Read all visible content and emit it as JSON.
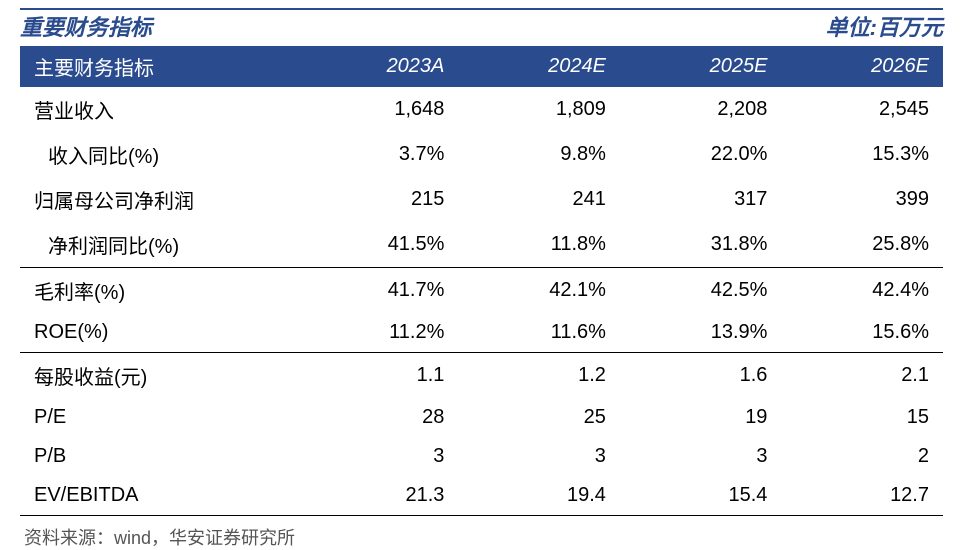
{
  "title": {
    "left": "重要财务指标",
    "right": "单位:百万元"
  },
  "table": {
    "type": "table",
    "header_bg": "#2a4b8d",
    "header_fg": "#ffffff",
    "title_color": "#2a4b8d",
    "border_color": "#000000",
    "font_size_body": 20,
    "font_size_header": 20,
    "columns": [
      "主要财务指标",
      "2023A",
      "2024E",
      "2025E",
      "2026E"
    ],
    "rows": [
      {
        "label": "营业收入",
        "v": [
          "1,648",
          "1,809",
          "2,208",
          "2,545"
        ],
        "indent": false,
        "sep": false
      },
      {
        "label": "收入同比(%)",
        "v": [
          "3.7%",
          "9.8%",
          "22.0%",
          "15.3%"
        ],
        "indent": true,
        "sep": false
      },
      {
        "label": "归属母公司净利润",
        "v": [
          "215",
          "241",
          "317",
          "399"
        ],
        "indent": false,
        "sep": false
      },
      {
        "label": "净利润同比(%)",
        "v": [
          "41.5%",
          "11.8%",
          "31.8%",
          "25.8%"
        ],
        "indent": true,
        "sep": true
      },
      {
        "label": "毛利率(%)",
        "v": [
          "41.7%",
          "42.1%",
          "42.5%",
          "42.4%"
        ],
        "indent": false,
        "sep": false
      },
      {
        "label": "ROE(%)",
        "v": [
          "11.2%",
          "11.6%",
          "13.9%",
          "15.6%"
        ],
        "indent": false,
        "sep": true
      },
      {
        "label": "每股收益(元)",
        "v": [
          "1.1",
          "1.2",
          "1.6",
          "2.1"
        ],
        "indent": false,
        "sep": false
      },
      {
        "label": "P/E",
        "v": [
          "28",
          "25",
          "19",
          "15"
        ],
        "indent": false,
        "sep": false
      },
      {
        "label": "P/B",
        "v": [
          "3",
          "3",
          "3",
          "2"
        ],
        "indent": false,
        "sep": false
      },
      {
        "label": "EV/EBITDA",
        "v": [
          "21.3",
          "19.4",
          "15.4",
          "12.7"
        ],
        "indent": false,
        "sep": true
      }
    ]
  },
  "footer": "资料来源：wind，华安证券研究所"
}
